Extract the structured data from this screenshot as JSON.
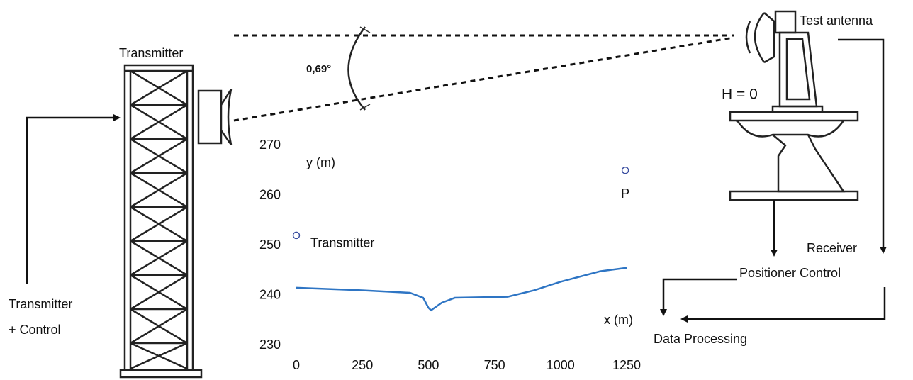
{
  "labels": {
    "tower": "Transmitter",
    "transmitter_control": [
      "Transmitter",
      "+ Control"
    ],
    "angle": "0,69°",
    "test_antenna": "Test antenna",
    "height": "H = 0",
    "receiver": "Receiver",
    "positioner": "Positioner Control",
    "processing": "Data Processing"
  },
  "chart_data": {
    "type": "line",
    "x_label": "x (m)",
    "y_label": "y (m)",
    "xlim": [
      0,
      1250
    ],
    "ylim": [
      230,
      270
    ],
    "xticks": [
      0,
      250,
      500,
      750,
      1000,
      1250
    ],
    "yticks": [
      230,
      240,
      250,
      260,
      270
    ],
    "series": [
      {
        "color": "#2e75c4",
        "x": [
          0,
          250,
          430,
          480,
          500,
          510,
          550,
          600,
          800,
          900,
          1000,
          1150,
          1250
        ],
        "values": [
          241.5,
          241,
          240.5,
          239.5,
          237.5,
          237,
          238.5,
          239.5,
          239.7,
          241,
          242.7,
          244.8,
          245.5
        ]
      }
    ],
    "points": {
      "color": "#3a4ea0",
      "x": [
        0,
        1245
      ],
      "values": [
        252,
        265
      ],
      "labels": [
        "Transmitter",
        "P"
      ]
    }
  }
}
